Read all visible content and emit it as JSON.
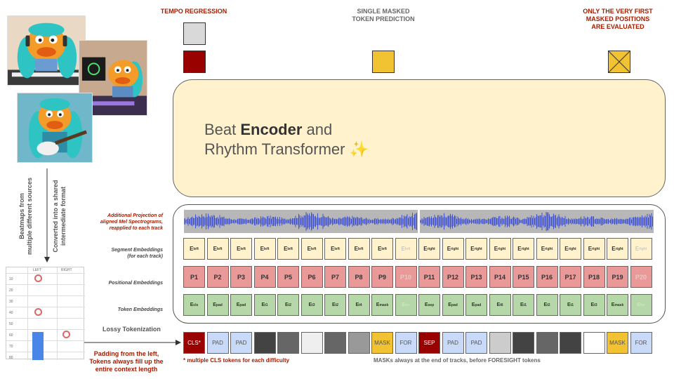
{
  "top_labels": {
    "tempo": "TEMPO REGRESSION",
    "single_masked": [
      "SINGLE MASKED",
      "TOKEN PREDICTION"
    ],
    "only_first": [
      "ONLY THE VERY FIRST",
      "MASKED POSITIONS",
      "ARE EVALUATED"
    ]
  },
  "encoder": {
    "line1_pre": "Beat ",
    "line1_bold": "Encoder",
    "line1_post": " and",
    "line2": "Rhythm Transformer ✨"
  },
  "left_side": {
    "vertical_a": [
      "Beatmaps from",
      "multiple different sources"
    ],
    "vertical_b": [
      "Converted into a shared",
      "intermediate format"
    ],
    "table_headers": [
      "LEFT",
      "RIGHT"
    ],
    "table_rows": [
      "10",
      "20",
      "30",
      "40",
      "50",
      "60",
      "70",
      "80"
    ],
    "padding_note": [
      "Padding from the left,",
      "Tokens always fill up the",
      "entire context length"
    ]
  },
  "row_labels": {
    "projection": [
      "Additional Projection of",
      "aligned Mel Spectrograms,",
      "reapplied to each track"
    ],
    "segment": [
      "Segment Embeddings",
      "(for each track)"
    ],
    "positional": "Positional Embeddings",
    "token": "Token Embeddings",
    "lossy": "Lossy Tokenization"
  },
  "segment_tokens": [
    {
      "b": "E",
      "s": "left"
    },
    {
      "b": "E",
      "s": "left"
    },
    {
      "b": "E",
      "s": "left"
    },
    {
      "b": "E",
      "s": "left"
    },
    {
      "b": "E",
      "s": "left"
    },
    {
      "b": "E",
      "s": "left"
    },
    {
      "b": "E",
      "s": "left"
    },
    {
      "b": "E",
      "s": "left"
    },
    {
      "b": "E",
      "s": "left"
    },
    {
      "b": "E",
      "s": "left",
      "faint": true
    },
    {
      "b": "E",
      "s": "right"
    },
    {
      "b": "E",
      "s": "right"
    },
    {
      "b": "E",
      "s": "right"
    },
    {
      "b": "E",
      "s": "right"
    },
    {
      "b": "E",
      "s": "right"
    },
    {
      "b": "E",
      "s": "right"
    },
    {
      "b": "E",
      "s": "right"
    },
    {
      "b": "E",
      "s": "right"
    },
    {
      "b": "E",
      "s": "right"
    },
    {
      "b": "E",
      "s": "right",
      "faint": true
    }
  ],
  "positional_tokens": [
    {
      "t": "P1"
    },
    {
      "t": "P2"
    },
    {
      "t": "P3"
    },
    {
      "t": "P4"
    },
    {
      "t": "P5"
    },
    {
      "t": "P6"
    },
    {
      "t": "P7"
    },
    {
      "t": "P8"
    },
    {
      "t": "P9"
    },
    {
      "t": "P10",
      "faint": true
    },
    {
      "t": "P11"
    },
    {
      "t": "P12"
    },
    {
      "t": "P13"
    },
    {
      "t": "P14"
    },
    {
      "t": "P15"
    },
    {
      "t": "P16"
    },
    {
      "t": "P17"
    },
    {
      "t": "P18"
    },
    {
      "t": "P19"
    },
    {
      "t": "P20",
      "faint": true
    }
  ],
  "token_tokens": [
    {
      "b": "E",
      "s": "cls"
    },
    {
      "b": "E",
      "s": "pad"
    },
    {
      "b": "E",
      "s": "pad"
    },
    {
      "b": "E",
      "s": "t1"
    },
    {
      "b": "E",
      "s": "t2"
    },
    {
      "b": "E",
      "s": "t3"
    },
    {
      "b": "E",
      "s": "t2"
    },
    {
      "b": "E",
      "s": "t4"
    },
    {
      "b": "E",
      "s": "mask"
    },
    {
      "b": "E",
      "s": "for",
      "faint": true
    },
    {
      "b": "E",
      "s": "sep"
    },
    {
      "b": "E",
      "s": "pad"
    },
    {
      "b": "E",
      "s": "pad"
    },
    {
      "b": "E",
      "s": "t6"
    },
    {
      "b": "E",
      "s": "t1"
    },
    {
      "b": "E",
      "s": "t2"
    },
    {
      "b": "E",
      "s": "t1"
    },
    {
      "b": "E",
      "s": "t3"
    },
    {
      "b": "E",
      "s": "mask"
    },
    {
      "b": "E",
      "s": "for",
      "faint": true
    }
  ],
  "lossy_tokens": [
    {
      "t": "CLS*",
      "bg": "#990000",
      "fg": "#ffffff"
    },
    {
      "t": "PAD",
      "bg": "#c9daf8",
      "fg": "#555555"
    },
    {
      "t": "PAD",
      "bg": "#c9daf8",
      "fg": "#555555"
    },
    {
      "t": "",
      "bg": "#434343"
    },
    {
      "t": "",
      "bg": "#666666"
    },
    {
      "t": "",
      "bg": "#efefef"
    },
    {
      "t": "",
      "bg": "#666666"
    },
    {
      "t": "",
      "bg": "#999999"
    },
    {
      "t": "MASK",
      "bg": "#f1c232",
      "fg": "#555555"
    },
    {
      "t": "FOR",
      "bg": "#c9daf8",
      "fg": "#555555"
    },
    {
      "t": "SEP",
      "bg": "#990000",
      "fg": "#ffffff"
    },
    {
      "t": "PAD",
      "bg": "#c9daf8",
      "fg": "#555555"
    },
    {
      "t": "PAD",
      "bg": "#c9daf8",
      "fg": "#555555"
    },
    {
      "t": "",
      "bg": "#cccccc"
    },
    {
      "t": "",
      "bg": "#434343"
    },
    {
      "t": "",
      "bg": "#666666"
    },
    {
      "t": "",
      "bg": "#434343"
    },
    {
      "t": "",
      "bg": "#ffffff"
    },
    {
      "t": "MASK",
      "bg": "#f1c232",
      "fg": "#555555"
    },
    {
      "t": "FOR",
      "bg": "#c9daf8",
      "fg": "#555555"
    }
  ],
  "notes": {
    "cls": "* multiple CLS tokens for each difficulty",
    "masks": "MASKs always at the end of tracks, before FORESIGHT tokens"
  },
  "colors": {
    "accent_red": "#a61c00",
    "encoder_fill": "#fff2cc",
    "mask_yellow": "#f1c232",
    "output_red": "#990000",
    "wave_blue": "#3c4fd6"
  }
}
